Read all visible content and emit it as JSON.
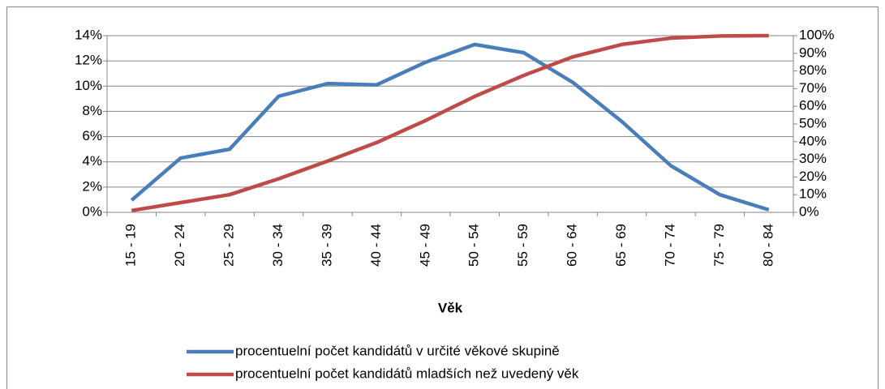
{
  "chart_data": {
    "type": "line",
    "x_label": "Věk",
    "categories": [
      "15 - 19",
      "20 - 24",
      "25 - 29",
      "30 - 34",
      "35 - 39",
      "40 - 44",
      "45 - 49",
      "50 - 54",
      "55 - 59",
      "60 - 64",
      "65 - 69",
      "70 - 74",
      "75 - 79",
      "80 - 84"
    ],
    "series": [
      {
        "name": "procentuelní počet kandidátů v určité věkové skupině",
        "color": "#4a7ebb",
        "values": [
          0.96,
          4.3,
          5.0,
          9.2,
          10.2,
          10.1,
          11.9,
          13.3,
          12.65,
          10.3,
          7.2,
          3.7,
          1.4,
          0.2
        ]
      },
      {
        "name": "procentuelní počet kandidátů mladších než uvedený věk",
        "color": "#be4b48",
        "axis": "y2",
        "values": [
          1,
          5.5,
          10,
          19,
          29,
          39.5,
          52,
          65.6,
          77.5,
          88,
          95,
          98.6,
          99.8,
          100
        ]
      }
    ],
    "ylim": [
      0,
      14
    ],
    "yticks": [
      {
        "value": 0,
        "label": "0%"
      },
      {
        "value": 2,
        "label": "2%"
      },
      {
        "value": 4,
        "label": "4%"
      },
      {
        "value": 6,
        "label": "6%"
      },
      {
        "value": 8,
        "label": "8%"
      },
      {
        "value": 10,
        "label": "10%"
      },
      {
        "value": 12,
        "label": "12%"
      },
      {
        "value": 14,
        "label": "14%"
      }
    ],
    "y2lim": [
      0,
      100
    ],
    "y2ticks": [
      {
        "value": 0,
        "label": "0%"
      },
      {
        "value": 10,
        "label": "10%"
      },
      {
        "value": 20,
        "label": "20%"
      },
      {
        "value": 30,
        "label": "30%"
      },
      {
        "value": 40,
        "label": "40%"
      },
      {
        "value": 50,
        "label": "50%"
      },
      {
        "value": 60,
        "label": "60%"
      },
      {
        "value": 70,
        "label": "70%"
      },
      {
        "value": 80,
        "label": "80%"
      },
      {
        "value": 90,
        "label": "90%"
      },
      {
        "value": 100,
        "label": "100%"
      }
    ],
    "grid": true,
    "legend": "bottom"
  }
}
